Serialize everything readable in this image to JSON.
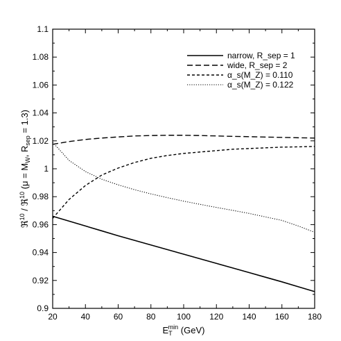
{
  "chart_data": {
    "type": "line",
    "xlabel": "E_T^min (GeV)",
    "ylabel": "ℜ10 / ℜ10 (μ = M_W, R_sep = 1.3)",
    "xlim": [
      20,
      180
    ],
    "ylim": [
      0.9,
      1.1
    ],
    "x_ticks": [
      "20",
      "40",
      "60",
      "80",
      "100",
      "120",
      "140",
      "160",
      "180"
    ],
    "y_ticks": [
      "0.9",
      "0.92",
      "0.94",
      "0.96",
      "0.98",
      "1",
      "1.02",
      "1.04",
      "1.06",
      "1.08",
      "1.1"
    ],
    "legend_position": "top-right",
    "grid": false,
    "x": [
      20,
      30,
      40,
      50,
      60,
      70,
      80,
      90,
      100,
      110,
      120,
      130,
      140,
      150,
      160,
      170,
      180
    ],
    "series": [
      {
        "name": "narrow, R_sep = 1",
        "style": "solid",
        "values": [
          0.966,
          0.9625,
          0.959,
          0.9555,
          0.952,
          0.9487,
          0.9454,
          0.9421,
          0.9388,
          0.9355,
          0.9322,
          0.9289,
          0.9256,
          0.9223,
          0.919,
          0.9155,
          0.912
        ]
      },
      {
        "name": "wide, R_sep = 2",
        "style": "dashed",
        "values": [
          1.0175,
          1.0195,
          1.021,
          1.022,
          1.0228,
          1.0235,
          1.0238,
          1.024,
          1.024,
          1.0238,
          1.0235,
          1.0232,
          1.023,
          1.0227,
          1.0225,
          1.0222,
          1.022
        ]
      },
      {
        "name": "α_s(M_Z) = 0.110",
        "style": "short-dashed",
        "values": [
          0.9645,
          0.978,
          0.988,
          0.9955,
          1.0005,
          1.0045,
          1.0075,
          1.0095,
          1.011,
          1.012,
          1.013,
          1.014,
          1.0145,
          1.015,
          1.0155,
          1.0157,
          1.016
        ]
      },
      {
        "name": "α_s(M_Z) = 0.122",
        "style": "dotted",
        "values": [
          1.019,
          1.006,
          0.998,
          0.9925,
          0.9885,
          0.985,
          0.982,
          0.9793,
          0.9768,
          0.9745,
          0.9723,
          0.9702,
          0.968,
          0.9655,
          0.963,
          0.959,
          0.9545
        ]
      }
    ]
  }
}
